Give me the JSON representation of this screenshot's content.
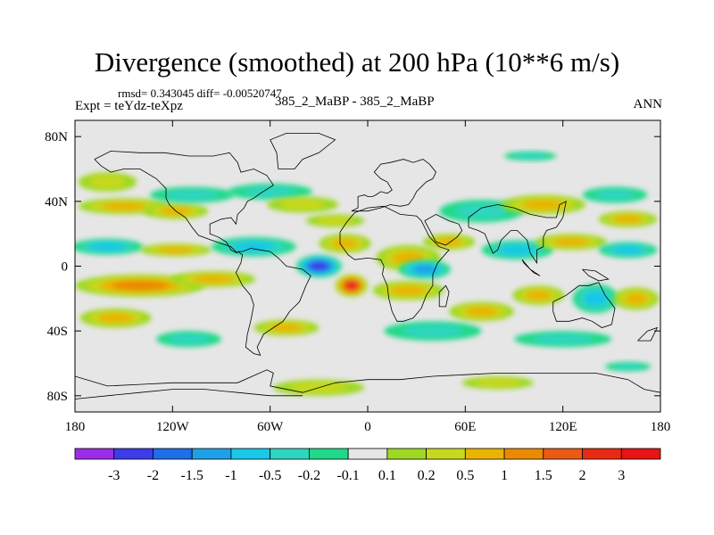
{
  "chart_data": {
    "type": "heatmap",
    "title": "Divergence (smoothed) at 200 hPa (10**6 m/s)",
    "stats_text": "rmsd= 0.343045 diff= -0.00520747",
    "experiment_text": "Expt = teYdz-teXpz",
    "cases_text": "385_2_MaBP - 385_2_MaBP",
    "season": "ANN",
    "projection": "cylindrical equidistant",
    "xlim": [
      -180,
      180
    ],
    "ylim": [
      -90,
      90
    ],
    "x_ticks": [
      {
        "value": -180,
        "label": "180"
      },
      {
        "value": -120,
        "label": "120W"
      },
      {
        "value": -60,
        "label": "60W"
      },
      {
        "value": 0,
        "label": "0"
      },
      {
        "value": 60,
        "label": "60E"
      },
      {
        "value": 120,
        "label": "120E"
      },
      {
        "value": 180,
        "label": "180"
      }
    ],
    "y_ticks": [
      {
        "value": 80,
        "label": "80N"
      },
      {
        "value": 40,
        "label": "40N"
      },
      {
        "value": 0,
        "label": "0"
      },
      {
        "value": -40,
        "label": "40S"
      },
      {
        "value": -80,
        "label": "80S"
      }
    ],
    "colorbar": {
      "levels": [
        "-3",
        "-2",
        "-1.5",
        "-1",
        "-0.5",
        "-0.2",
        "-0.1",
        "0.1",
        "0.2",
        "0.5",
        "1",
        "1.5",
        "2",
        "3"
      ],
      "colors": [
        "#9a2ee8",
        "#3c3ce8",
        "#1e6ee8",
        "#1ea0e6",
        "#18c8e6",
        "#2ed6c0",
        "#21d98a",
        "#e6e6e6",
        "#9ed822",
        "#c8d81e",
        "#e8b400",
        "#ea8a00",
        "#ea5a14",
        "#e82a14",
        "#e61414"
      ]
    },
    "features": [
      {
        "lon": -160,
        "lat": 52,
        "rx": 18,
        "ry": 6,
        "value": 0.3
      },
      {
        "lon": -150,
        "lat": 37,
        "rx": 28,
        "ry": 5,
        "value": 0.6
      },
      {
        "lon": -118,
        "lat": 34,
        "rx": 20,
        "ry": 5,
        "value": 0.8
      },
      {
        "lon": -108,
        "lat": 44,
        "rx": 26,
        "ry": 5,
        "value": -0.2
      },
      {
        "lon": -60,
        "lat": 46,
        "rx": 26,
        "ry": 5,
        "value": -0.3
      },
      {
        "lon": -40,
        "lat": 38,
        "rx": 22,
        "ry": 5,
        "value": 0.4
      },
      {
        "lon": -20,
        "lat": 28,
        "rx": 18,
        "ry": 4,
        "value": 0.3
      },
      {
        "lon": 70,
        "lat": 34,
        "rx": 26,
        "ry": 7,
        "value": -0.4
      },
      {
        "lon": 108,
        "lat": 38,
        "rx": 26,
        "ry": 6,
        "value": 0.8
      },
      {
        "lon": 152,
        "lat": 44,
        "rx": 20,
        "ry": 5,
        "value": -0.3
      },
      {
        "lon": 160,
        "lat": 29,
        "rx": 18,
        "ry": 5,
        "value": 0.5
      },
      {
        "lon": 100,
        "lat": 68,
        "rx": 16,
        "ry": 3,
        "value": -0.2
      },
      {
        "lon": -160,
        "lat": 12,
        "rx": 22,
        "ry": 5,
        "value": -0.9
      },
      {
        "lon": -118,
        "lat": 10,
        "rx": 22,
        "ry": 4,
        "value": 0.8
      },
      {
        "lon": -70,
        "lat": 12,
        "rx": 26,
        "ry": 6,
        "value": -0.9
      },
      {
        "lon": -30,
        "lat": 0,
        "rx": 14,
        "ry": 7,
        "value": -2.2
      },
      {
        "lon": -14,
        "lat": 14,
        "rx": 16,
        "ry": 6,
        "value": 0.5
      },
      {
        "lon": 25,
        "lat": 5,
        "rx": 20,
        "ry": 8,
        "value": 0.6
      },
      {
        "lon": 35,
        "lat": -2,
        "rx": 16,
        "ry": 6,
        "value": -1.2
      },
      {
        "lon": 50,
        "lat": 15,
        "rx": 16,
        "ry": 5,
        "value": 0.7
      },
      {
        "lon": 92,
        "lat": 10,
        "rx": 22,
        "ry": 6,
        "value": -0.6
      },
      {
        "lon": 125,
        "lat": 15,
        "rx": 22,
        "ry": 5,
        "value": 0.7
      },
      {
        "lon": 160,
        "lat": 10,
        "rx": 18,
        "ry": 5,
        "value": -0.8
      },
      {
        "lon": -140,
        "lat": -12,
        "rx": 40,
        "ry": 7,
        "value": 1.3
      },
      {
        "lon": -95,
        "lat": -8,
        "rx": 26,
        "ry": 5,
        "value": 0.5
      },
      {
        "lon": -10,
        "lat": -12,
        "rx": 10,
        "ry": 7,
        "value": 2.7
      },
      {
        "lon": 25,
        "lat": -15,
        "rx": 22,
        "ry": 6,
        "value": 0.9
      },
      {
        "lon": 70,
        "lat": -28,
        "rx": 20,
        "ry": 6,
        "value": 0.5
      },
      {
        "lon": 105,
        "lat": -18,
        "rx": 16,
        "ry": 6,
        "value": 0.6
      },
      {
        "lon": 140,
        "lat": -20,
        "rx": 14,
        "ry": 9,
        "value": -0.9
      },
      {
        "lon": 165,
        "lat": -20,
        "rx": 14,
        "ry": 7,
        "value": 0.6
      },
      {
        "lon": -155,
        "lat": -32,
        "rx": 22,
        "ry": 6,
        "value": 0.6
      },
      {
        "lon": -50,
        "lat": -38,
        "rx": 20,
        "ry": 5,
        "value": 0.9
      },
      {
        "lon": -110,
        "lat": -45,
        "rx": 20,
        "ry": 5,
        "value": -0.2
      },
      {
        "lon": 40,
        "lat": -40,
        "rx": 30,
        "ry": 6,
        "value": -0.2
      },
      {
        "lon": 120,
        "lat": -45,
        "rx": 30,
        "ry": 5,
        "value": -0.4
      },
      {
        "lon": -30,
        "lat": -75,
        "rx": 28,
        "ry": 5,
        "value": 0.3
      },
      {
        "lon": 80,
        "lat": -72,
        "rx": 22,
        "ry": 4,
        "value": 0.3
      },
      {
        "lon": 160,
        "lat": -62,
        "rx": 14,
        "ry": 3,
        "value": -0.3
      }
    ],
    "coastlines": [
      [
        [
          -10,
          34
        ],
        [
          -6,
          36
        ],
        [
          -6,
          43
        ],
        [
          -2,
          44
        ],
        [
          0,
          43
        ],
        [
          3,
          43
        ],
        [
          5,
          44
        ],
        [
          8,
          46
        ],
        [
          12,
          45
        ],
        [
          15,
          47
        ],
        [
          12,
          52
        ],
        [
          8,
          54
        ],
        [
          4,
          58
        ],
        [
          8,
          63
        ],
        [
          14,
          64
        ],
        [
          22,
          66
        ],
        [
          28,
          64
        ],
        [
          34,
          66
        ],
        [
          38,
          63
        ],
        [
          42,
          58
        ],
        [
          40,
          54
        ],
        [
          36,
          52
        ],
        [
          30,
          46
        ],
        [
          28,
          42
        ],
        [
          25,
          38
        ],
        [
          20,
          37
        ],
        [
          14,
          38
        ],
        [
          8,
          36
        ],
        [
          0,
          34
        ],
        [
          -10,
          34
        ]
      ],
      [
        [
          -17,
          21
        ],
        [
          -17,
          14
        ],
        [
          -12,
          7
        ],
        [
          -8,
          4
        ],
        [
          0,
          5
        ],
        [
          8,
          4
        ],
        [
          10,
          0
        ],
        [
          9,
          -5
        ],
        [
          12,
          -12
        ],
        [
          13,
          -20
        ],
        [
          15,
          -28
        ],
        [
          18,
          -34
        ],
        [
          22,
          -34
        ],
        [
          28,
          -32
        ],
        [
          33,
          -26
        ],
        [
          36,
          -18
        ],
        [
          40,
          -12
        ],
        [
          40,
          -5
        ],
        [
          43,
          2
        ],
        [
          50,
          10
        ],
        [
          44,
          12
        ],
        [
          38,
          18
        ],
        [
          33,
          28
        ],
        [
          30,
          31
        ],
        [
          20,
          32
        ],
        [
          10,
          37
        ],
        [
          0,
          36
        ],
        [
          -8,
          33
        ],
        [
          -13,
          27
        ],
        [
          -17,
          21
        ]
      ],
      [
        [
          44,
          -25
        ],
        [
          48,
          -25
        ],
        [
          50,
          -16
        ],
        [
          48,
          -12
        ],
        [
          44,
          -16
        ],
        [
          44,
          -25
        ]
      ],
      [
        [
          35,
          28
        ],
        [
          42,
          15
        ],
        [
          48,
          13
        ],
        [
          55,
          18
        ],
        [
          58,
          22
        ],
        [
          56,
          26
        ],
        [
          50,
          28
        ],
        [
          42,
          32
        ],
        [
          35,
          28
        ]
      ],
      [
        [
          62,
          24
        ],
        [
          68,
          22
        ],
        [
          72,
          20
        ],
        [
          77,
          8
        ],
        [
          80,
          10
        ],
        [
          82,
          16
        ],
        [
          88,
          22
        ],
        [
          92,
          22
        ],
        [
          98,
          16
        ],
        [
          100,
          8
        ],
        [
          104,
          2
        ],
        [
          104,
          10
        ],
        [
          108,
          12
        ],
        [
          108,
          18
        ],
        [
          110,
          22
        ],
        [
          116,
          24
        ],
        [
          120,
          30
        ],
        [
          122,
          40
        ],
        [
          118,
          38
        ],
        [
          116,
          30
        ],
        [
          110,
          30
        ],
        [
          100,
          32
        ],
        [
          90,
          36
        ],
        [
          80,
          38
        ],
        [
          70,
          36
        ],
        [
          62,
          30
        ],
        [
          62,
          24
        ]
      ],
      [
        [
          95,
          4
        ],
        [
          100,
          -2
        ],
        [
          106,
          -6
        ],
        [
          102,
          -4
        ],
        [
          96,
          2
        ],
        [
          95,
          4
        ]
      ],
      [
        [
          114,
          -22
        ],
        [
          122,
          -18
        ],
        [
          130,
          -12
        ],
        [
          136,
          -12
        ],
        [
          142,
          -10
        ],
        [
          146,
          -18
        ],
        [
          152,
          -26
        ],
        [
          150,
          -36
        ],
        [
          144,
          -38
        ],
        [
          138,
          -34
        ],
        [
          132,
          -32
        ],
        [
          124,
          -34
        ],
        [
          116,
          -34
        ],
        [
          114,
          -28
        ],
        [
          114,
          -22
        ]
      ],
      [
        [
          132,
          -2
        ],
        [
          140,
          -3
        ],
        [
          148,
          -8
        ],
        [
          142,
          -9
        ],
        [
          136,
          -6
        ],
        [
          132,
          -2
        ]
      ],
      [
        [
          166,
          -46
        ],
        [
          172,
          -40
        ],
        [
          178,
          -38
        ],
        [
          174,
          -46
        ],
        [
          168,
          -46
        ],
        [
          166,
          -46
        ]
      ],
      [
        [
          -80,
          9
        ],
        [
          -77,
          7
        ],
        [
          -78,
          2
        ],
        [
          -81,
          -4
        ],
        [
          -77,
          -12
        ],
        [
          -72,
          -18
        ],
        [
          -70,
          -24
        ],
        [
          -72,
          -34
        ],
        [
          -74,
          -42
        ],
        [
          -75,
          -50
        ],
        [
          -70,
          -54
        ],
        [
          -66,
          -55
        ],
        [
          -68,
          -50
        ],
        [
          -64,
          -42
        ],
        [
          -58,
          -38
        ],
        [
          -52,
          -34
        ],
        [
          -48,
          -28
        ],
        [
          -42,
          -22
        ],
        [
          -38,
          -12
        ],
        [
          -35,
          -6
        ],
        [
          -40,
          -2
        ],
        [
          -50,
          0
        ],
        [
          -55,
          5
        ],
        [
          -60,
          9
        ],
        [
          -66,
          10
        ],
        [
          -72,
          11
        ],
        [
          -77,
          9
        ],
        [
          -80,
          9
        ]
      ],
      [
        [
          -168,
          66
        ],
        [
          -158,
          71
        ],
        [
          -140,
          70
        ],
        [
          -125,
          70
        ],
        [
          -110,
          68
        ],
        [
          -95,
          68
        ],
        [
          -85,
          70
        ],
        [
          -80,
          64
        ],
        [
          -78,
          58
        ],
        [
          -70,
          60
        ],
        [
          -62,
          56
        ],
        [
          -58,
          50
        ],
        [
          -66,
          45
        ],
        [
          -70,
          42
        ],
        [
          -74,
          40
        ],
        [
          -76,
          36
        ],
        [
          -80,
          32
        ],
        [
          -81,
          26
        ],
        [
          -84,
          30
        ],
        [
          -90,
          29
        ],
        [
          -97,
          26
        ],
        [
          -97,
          20
        ],
        [
          -92,
          18
        ],
        [
          -87,
          15
        ],
        [
          -84,
          10
        ],
        [
          -80,
          8
        ],
        [
          -84,
          12
        ],
        [
          -90,
          14
        ],
        [
          -96,
          16
        ],
        [
          -104,
          19
        ],
        [
          -108,
          24
        ],
        [
          -112,
          30
        ],
        [
          -118,
          34
        ],
        [
          -122,
          38
        ],
        [
          -124,
          42
        ],
        [
          -124,
          48
        ],
        [
          -130,
          54
        ],
        [
          -140,
          60
        ],
        [
          -150,
          60
        ],
        [
          -158,
          58
        ],
        [
          -164,
          62
        ],
        [
          -168,
          66
        ]
      ],
      [
        [
          -55,
          60
        ],
        [
          -45,
          60
        ],
        [
          -40,
          66
        ],
        [
          -30,
          70
        ],
        [
          -20,
          78
        ],
        [
          -30,
          82
        ],
        [
          -50,
          82
        ],
        [
          -60,
          78
        ],
        [
          -56,
          70
        ],
        [
          -55,
          60
        ]
      ],
      [
        [
          -180,
          -68
        ],
        [
          -160,
          -74
        ],
        [
          -140,
          -73
        ],
        [
          -120,
          -72
        ],
        [
          -100,
          -72
        ],
        [
          -80,
          -72
        ],
        [
          -62,
          -64
        ],
        [
          -58,
          -66
        ],
        [
          -60,
          -74
        ],
        [
          -40,
          -78
        ],
        [
          -20,
          -72
        ],
        [
          0,
          -70
        ],
        [
          20,
          -70
        ],
        [
          40,
          -68
        ],
        [
          60,
          -67
        ],
        [
          80,
          -66
        ],
        [
          100,
          -66
        ],
        [
          120,
          -66
        ],
        [
          140,
          -66
        ],
        [
          160,
          -70
        ],
        [
          170,
          -76
        ],
        [
          180,
          -78
        ]
      ],
      [
        [
          -180,
          -82
        ],
        [
          -160,
          -80
        ],
        [
          -140,
          -78
        ],
        [
          -120,
          -76
        ],
        [
          -100,
          -76
        ],
        [
          -80,
          -78
        ],
        [
          -60,
          -80
        ],
        [
          -40,
          -80
        ]
      ]
    ]
  }
}
